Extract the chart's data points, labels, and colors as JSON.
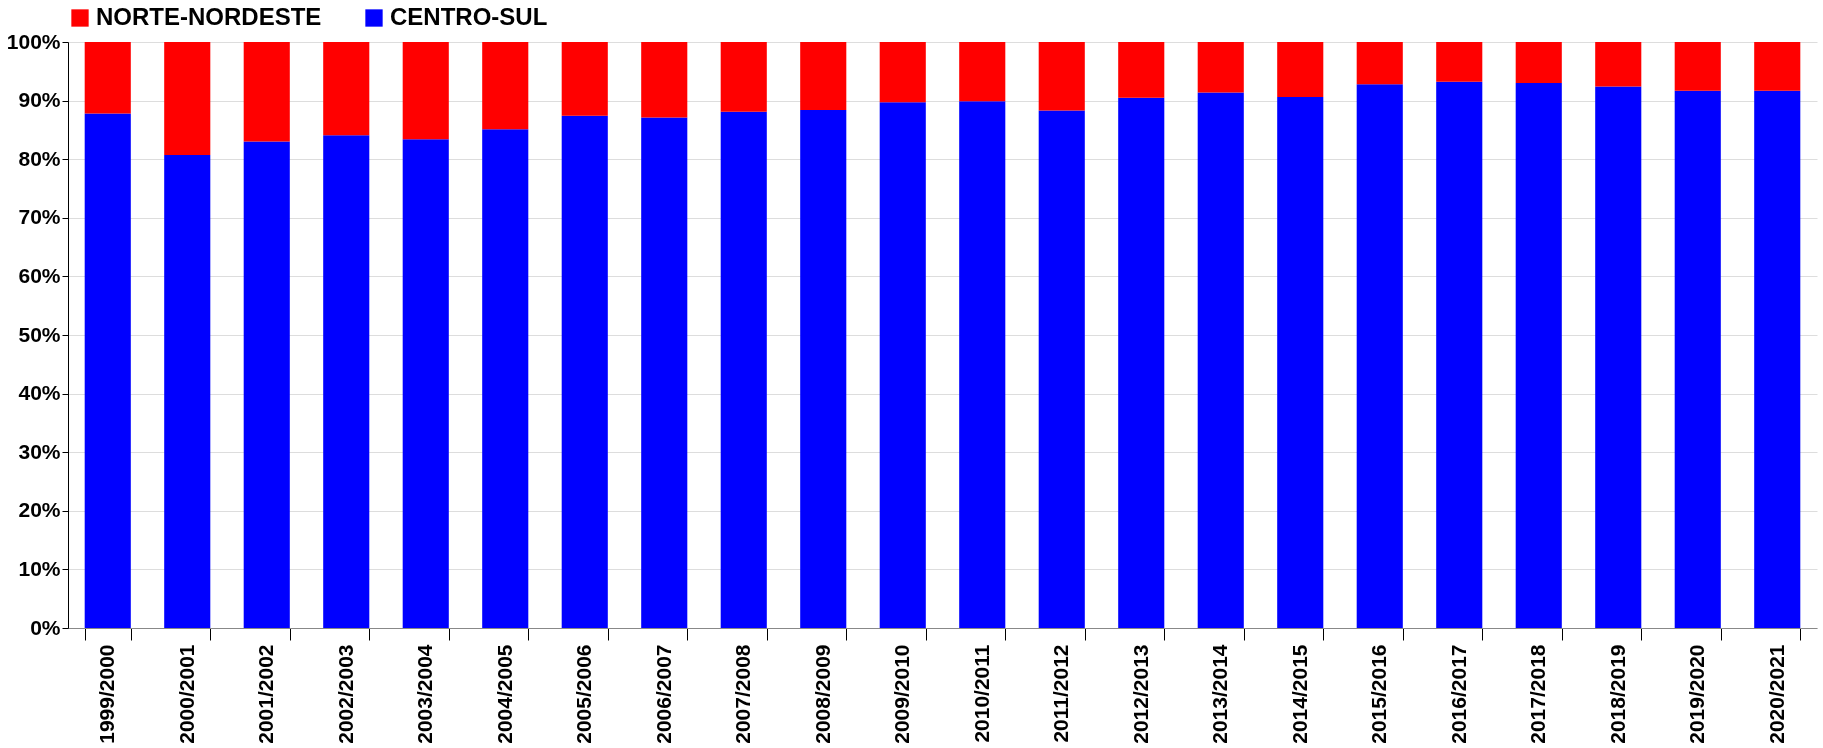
{
  "chart_data": {
    "type": "bar",
    "stacked": true,
    "categories": [
      "1999/2000",
      "2000/2001",
      "2001/2002",
      "2002/2003",
      "2003/2004",
      "2004/2005",
      "2005/2006",
      "2006/2007",
      "2007/2008",
      "2008/2009",
      "2009/2010",
      "2010/2011",
      "2011/2012",
      "2012/2013",
      "2013/2014",
      "2014/2015",
      "2015/2016",
      "2016/2017",
      "2017/2018",
      "2018/2019",
      "2019/2020",
      "2020/2021"
    ],
    "series": [
      {
        "name": "CENTRO-SUL",
        "color": "#0000ff",
        "values": [
          87.8,
          80.7,
          83.0,
          84.1,
          83.4,
          85.1,
          87.4,
          87.1,
          88.1,
          88.4,
          89.7,
          89.9,
          88.3,
          90.5,
          91.4,
          90.6,
          92.8,
          93.2,
          93.0,
          92.4,
          91.7,
          91.7
        ]
      },
      {
        "name": "NORTE-NORDESTE",
        "color": "#ff0000",
        "values": [
          12.2,
          19.3,
          17.0,
          15.9,
          16.6,
          14.9,
          12.6,
          12.9,
          11.9,
          11.6,
          10.3,
          10.1,
          11.7,
          9.5,
          8.6,
          9.4,
          7.2,
          6.8,
          7.0,
          7.6,
          8.3,
          8.3
        ]
      }
    ],
    "ylim": [
      0,
      100
    ],
    "yticks": [
      {
        "value": 0,
        "label": "0%"
      },
      {
        "value": 10,
        "label": "10%"
      },
      {
        "value": 20,
        "label": "20%"
      },
      {
        "value": 30,
        "label": "30%"
      },
      {
        "value": 40,
        "label": "40%"
      },
      {
        "value": 50,
        "label": "50%"
      },
      {
        "value": 60,
        "label": "60%"
      },
      {
        "value": 70,
        "label": "70%"
      },
      {
        "value": 80,
        "label": "80%"
      },
      {
        "value": 90,
        "label": "90%"
      },
      {
        "value": 100,
        "label": "100%"
      }
    ],
    "grid": "y",
    "legend": "top"
  }
}
